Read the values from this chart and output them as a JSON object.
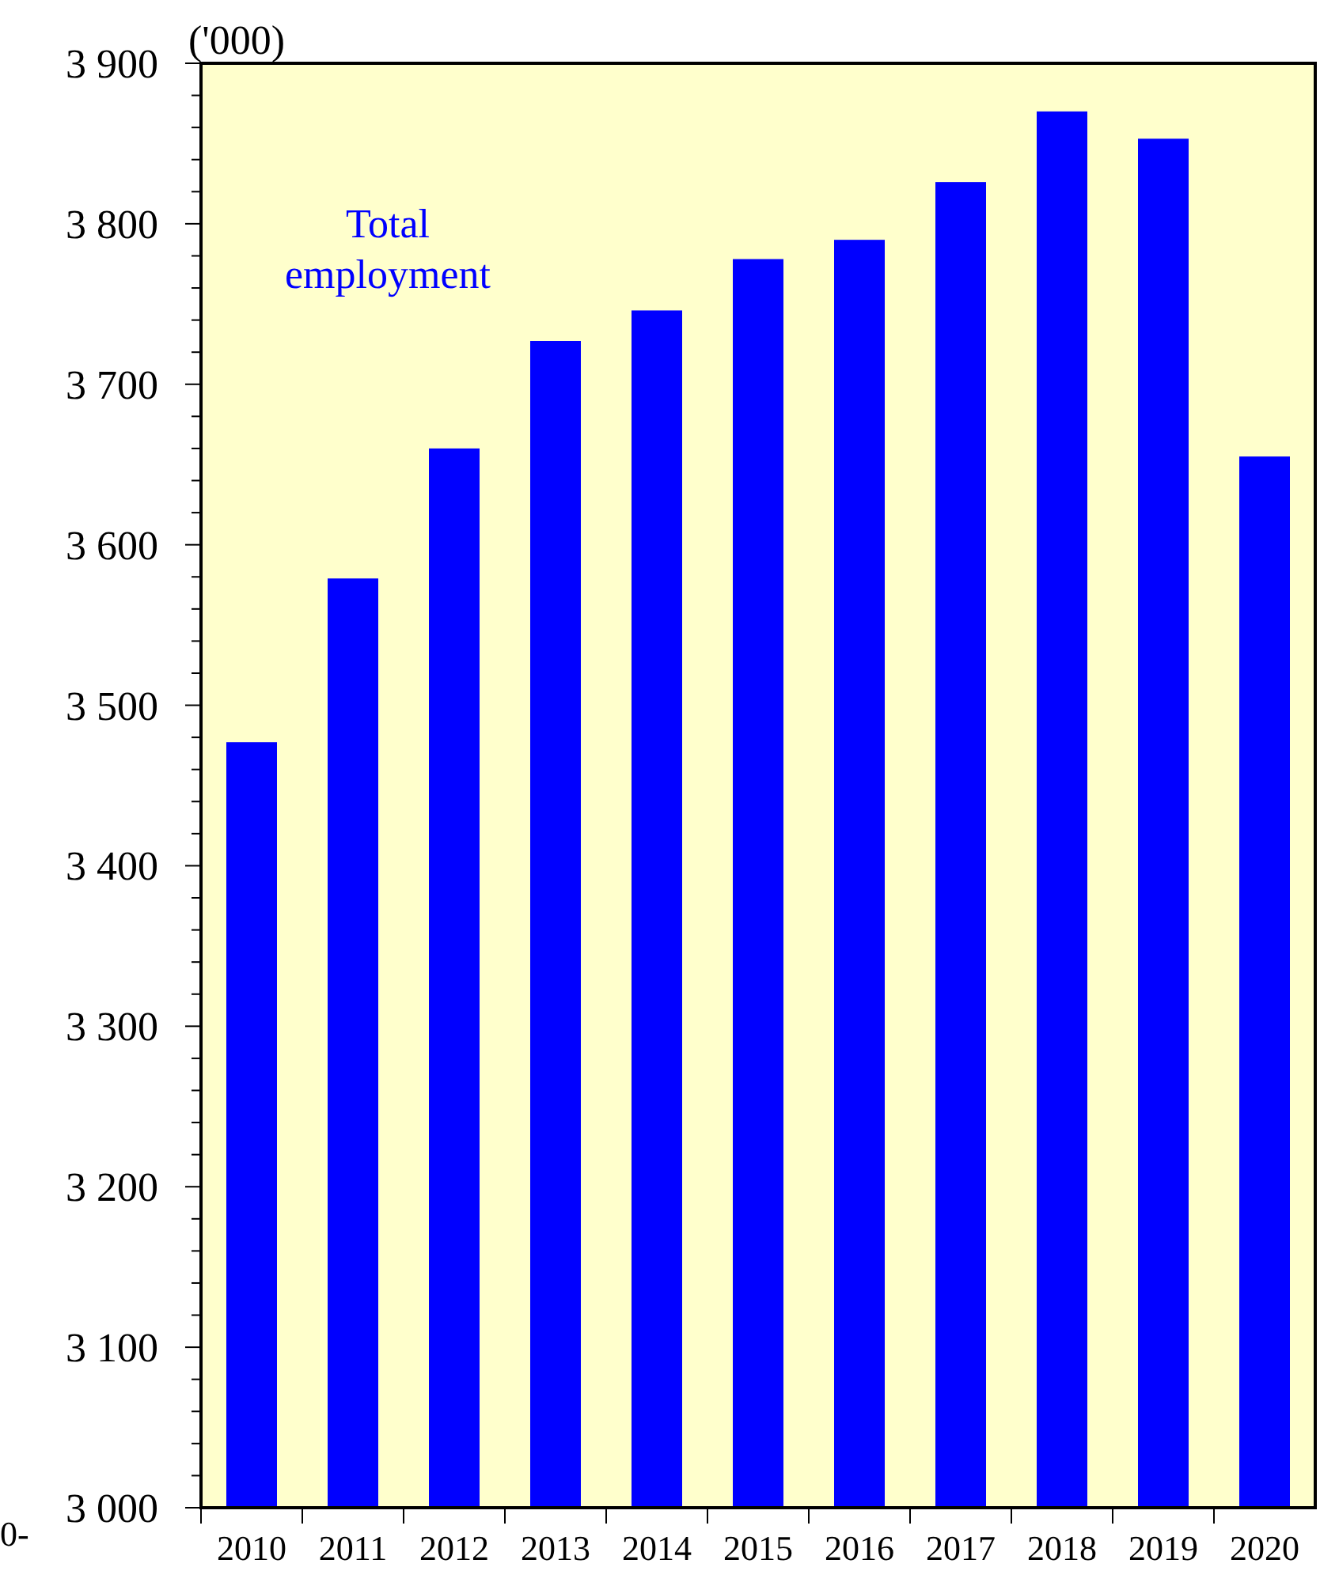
{
  "chart_data": {
    "type": "bar",
    "ylabel": "('000)",
    "categories": [
      "2010",
      "2011",
      "2012",
      "2013",
      "2014",
      "2015",
      "2016",
      "2017",
      "2018",
      "2019",
      "2020"
    ],
    "series": [
      {
        "name": "Total employment",
        "color": "#0000ff",
        "values": [
          3477,
          3579,
          3660,
          3727,
          3746,
          3778,
          3790,
          3826,
          3870,
          3853,
          3655
        ]
      }
    ],
    "ylim": [
      3000,
      3900
    ],
    "yticks": [
      {
        "value": 3000,
        "label": "3 000"
      },
      {
        "value": 3100,
        "label": "3 100"
      },
      {
        "value": 3200,
        "label": "3 200"
      },
      {
        "value": 3300,
        "label": "3 300"
      },
      {
        "value": 3400,
        "label": "3 400"
      },
      {
        "value": 3500,
        "label": "3 500"
      },
      {
        "value": 3600,
        "label": "3 600"
      },
      {
        "value": 3700,
        "label": "3 700"
      },
      {
        "value": 3800,
        "label": "3 800"
      },
      {
        "value": 3900,
        "label": "3 900"
      }
    ],
    "annotations": [
      "0-"
    ]
  }
}
